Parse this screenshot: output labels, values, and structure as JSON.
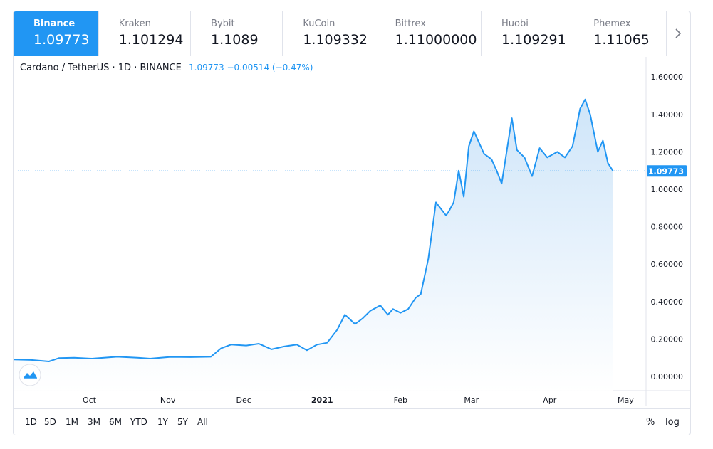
{
  "tabs": [
    {
      "exchange": "Binance",
      "price": "1.09773",
      "active": true
    },
    {
      "exchange": "Kraken",
      "price": "1.101294",
      "active": false
    },
    {
      "exchange": "Bybit",
      "price": "1.1089",
      "active": false
    },
    {
      "exchange": "KuCoin",
      "price": "1.109332",
      "active": false
    },
    {
      "exchange": "Bittrex",
      "price": "1.11000000",
      "active": false
    },
    {
      "exchange": "Huobi",
      "price": "1.109291",
      "active": false
    },
    {
      "exchange": "Phemex",
      "price": "1.11065",
      "active": false
    }
  ],
  "legend": {
    "symbol": "Cardano / TetherUS · 1D · BINANCE",
    "values": "1.09773 −0.00514 (−0.47%)"
  },
  "colors": {
    "accent": "#2196f3",
    "line": "#2196f3",
    "fill_top": "#c9e2f8",
    "fill_bottom": "#ffffff"
  },
  "range_buttons": [
    "1D",
    "5D",
    "1M",
    "3M",
    "6M",
    "YTD",
    "1Y",
    "5Y",
    "All"
  ],
  "right_buttons": {
    "percent": "%",
    "log": "log"
  },
  "chart_data": {
    "type": "area",
    "x_unit": "date",
    "y_ticks": [
      "0.00000",
      "0.20000",
      "0.40000",
      "0.60000",
      "0.80000",
      "1.00000",
      "1.20000",
      "1.40000",
      "1.60000"
    ],
    "ylim": [
      0.0,
      1.6
    ],
    "x_ticks": [
      {
        "label": "Oct",
        "date": "2020-10-01"
      },
      {
        "label": "Nov",
        "date": "2020-11-01"
      },
      {
        "label": "Dec",
        "date": "2020-12-01"
      },
      {
        "label": "2021",
        "date": "2021-01-01",
        "bold": true
      },
      {
        "label": "Feb",
        "date": "2021-02-01"
      },
      {
        "label": "Mar",
        "date": "2021-03-01"
      },
      {
        "label": "Apr",
        "date": "2021-04-01"
      },
      {
        "label": "May",
        "date": "2021-05-01"
      }
    ],
    "last_price": {
      "label": "1.09773",
      "value": 1.09773
    },
    "series": [
      {
        "dates": [
          "2020-09-01",
          "2020-09-08",
          "2020-09-15",
          "2020-09-19",
          "2020-09-25",
          "2020-10-02",
          "2020-10-12",
          "2020-10-20",
          "2020-10-25",
          "2020-11-02",
          "2020-11-10",
          "2020-11-18",
          "2020-11-22",
          "2020-11-26",
          "2020-12-02",
          "2020-12-07",
          "2020-12-12",
          "2020-12-17",
          "2020-12-22",
          "2020-12-26",
          "2020-12-30",
          "2021-01-03",
          "2021-01-07",
          "2021-01-10",
          "2021-01-14",
          "2021-01-17",
          "2021-01-20",
          "2021-01-24",
          "2021-01-27",
          "2021-01-29",
          "2021-02-01",
          "2021-02-04",
          "2021-02-07",
          "2021-02-09",
          "2021-02-12",
          "2021-02-15",
          "2021-02-19",
          "2021-02-20",
          "2021-02-22",
          "2021-02-24",
          "2021-02-26",
          "2021-02-28",
          "2021-03-02",
          "2021-03-06",
          "2021-03-09",
          "2021-03-11",
          "2021-03-13",
          "2021-03-17",
          "2021-03-19",
          "2021-03-22",
          "2021-03-25",
          "2021-03-28",
          "2021-03-31",
          "2021-04-04",
          "2021-04-07",
          "2021-04-10",
          "2021-04-13",
          "2021-04-15",
          "2021-04-17",
          "2021-04-20",
          "2021-04-22",
          "2021-04-24",
          "2021-04-26"
        ],
        "values": [
          0.09,
          0.088,
          0.08,
          0.098,
          0.1,
          0.095,
          0.105,
          0.1,
          0.095,
          0.104,
          0.103,
          0.105,
          0.15,
          0.17,
          0.165,
          0.175,
          0.145,
          0.16,
          0.17,
          0.14,
          0.17,
          0.18,
          0.25,
          0.33,
          0.28,
          0.31,
          0.35,
          0.38,
          0.33,
          0.36,
          0.34,
          0.36,
          0.42,
          0.44,
          0.63,
          0.93,
          0.86,
          0.88,
          0.93,
          1.1,
          0.96,
          1.23,
          1.31,
          1.19,
          1.16,
          1.1,
          1.03,
          1.38,
          1.21,
          1.17,
          1.07,
          1.22,
          1.17,
          1.2,
          1.17,
          1.23,
          1.43,
          1.48,
          1.4,
          1.2,
          1.26,
          1.14,
          1.0977
        ]
      }
    ]
  }
}
